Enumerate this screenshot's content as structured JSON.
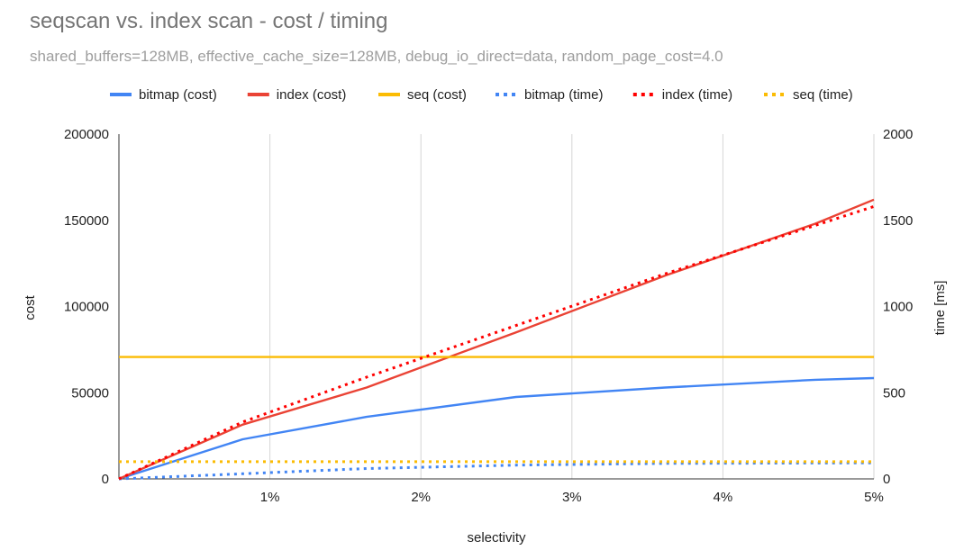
{
  "chart_data": {
    "type": "line",
    "title": "seqscan vs. index scan - cost / timing",
    "subtitle": "shared_buffers=128MB, effective_cache_size=128MB, debug_io_direct=data, random_page_cost=4.0",
    "xlabel": "selectivity",
    "ylabel_left": "cost",
    "ylabel_right": "time [ms]",
    "xlim": [
      0,
      5
    ],
    "ylim_left": [
      0,
      200000
    ],
    "ylim_right": [
      0,
      2000
    ],
    "x_ticks": [
      {
        "value": 1,
        "label": "1%"
      },
      {
        "value": 2,
        "label": "2%"
      },
      {
        "value": 3,
        "label": "3%"
      },
      {
        "value": 4,
        "label": "4%"
      },
      {
        "value": 5,
        "label": "5%"
      }
    ],
    "y_ticks_left": [
      "0",
      "50000",
      "100000",
      "150000",
      "200000"
    ],
    "y_ticks_right": [
      "0",
      "500",
      "1000",
      "1500",
      "2000"
    ],
    "grid": "vertical",
    "legend_position": "top",
    "series": [
      {
        "name": "bitmap (cost)",
        "axis": "left",
        "style": "solid",
        "color": "#4285f4",
        "x": [
          0,
          0.82,
          1.64,
          2.63,
          3.62,
          4.61,
          5.0
        ],
        "y": [
          0,
          23000,
          36000,
          47500,
          53000,
          57500,
          58500
        ]
      },
      {
        "name": "index (cost)",
        "axis": "left",
        "style": "solid",
        "color": "#ea4335",
        "x": [
          0,
          0.82,
          1.64,
          2.63,
          3.62,
          4.61,
          5.0
        ],
        "y": [
          0,
          31500,
          53000,
          85000,
          118000,
          148000,
          162000
        ]
      },
      {
        "name": "seq (cost)",
        "axis": "left",
        "style": "solid",
        "color": "#fbbc04",
        "x": [
          0,
          5.0
        ],
        "y": [
          70700,
          70700
        ]
      },
      {
        "name": "bitmap (time)",
        "axis": "right",
        "style": "dotted",
        "color": "#4285f4",
        "x": [
          0,
          0.82,
          1.64,
          2.63,
          3.62,
          4.61,
          5.0
        ],
        "y": [
          0,
          30,
          60,
          80,
          90,
          92,
          93
        ]
      },
      {
        "name": "index (time)",
        "axis": "right",
        "style": "dotted",
        "color": "#ff0000",
        "x": [
          0,
          0.82,
          1.64,
          2.63,
          3.62,
          4.61,
          5.0
        ],
        "y": [
          0,
          330,
          590,
          890,
          1190,
          1470,
          1580
        ]
      },
      {
        "name": "seq (time)",
        "axis": "right",
        "style": "dotted",
        "color": "#fbbc04",
        "x": [
          0,
          5.0
        ],
        "y": [
          100,
          100
        ]
      }
    ]
  }
}
